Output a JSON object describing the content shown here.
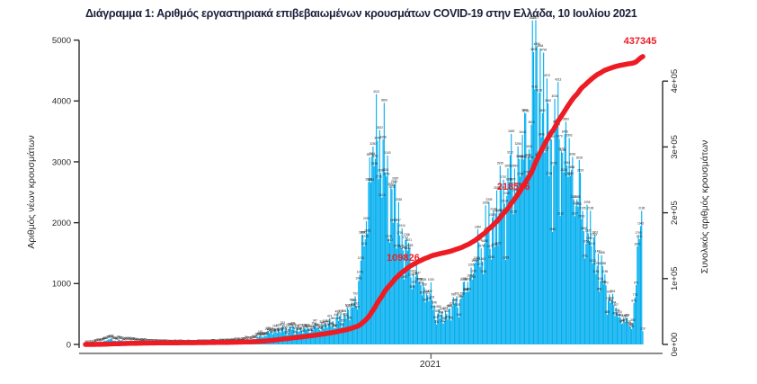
{
  "title": "Διάγραμμα 1: Αριθμός εργαστηριακά επιβεβαιωμένων κρουσμάτων COVID-19 στην Ελλάδα, 10 Ιουλίου 2021",
  "colors": {
    "bar": "#00AEEF",
    "cumulative_line": "#ED1C24",
    "annotation_text": "#ED1C24",
    "title_text": "#1b1f3a",
    "axis_text": "#2b2b2b",
    "bar_label_text": "#222222",
    "axis_line": "#2b2b2b",
    "frame_line": "#666666",
    "background": "#ffffff"
  },
  "chart_data": {
    "type": "bar",
    "title": "Διάγραμμα 1: Αριθμός εργαστηριακά επιβεβαιωμένων κρουσμάτων COVID-19 στην Ελλάδα, 10 Ιουλίου 2021",
    "x_axis": {
      "year_label": "2021",
      "year_tick_day_index": 310,
      "days": 501,
      "period": "late Feb 2020 to 10 July 2021"
    },
    "left_axis": {
      "title": "Αριθμός νέων κρουσμάτων",
      "ticks": [
        0,
        1000,
        2000,
        3000,
        4000,
        5000
      ],
      "range": [
        0,
        5000
      ]
    },
    "right_axis": {
      "title": "Συνολικός αριθμός κρουσμάτων",
      "ticks": [
        "0e+00",
        "1e+05",
        "2e+05",
        "3e+05",
        "4e+05"
      ],
      "tick_values": [
        0,
        100000,
        200000,
        300000,
        400000
      ],
      "range": [
        0,
        400000
      ]
    },
    "series": [
      {
        "name": "daily_new_cases",
        "type": "bar",
        "note": "per-day printed labels are illegible at source resolution; envelope keypoints [day_index, cases] estimated from bar heights",
        "envelope": [
          [
            0,
            2
          ],
          [
            6,
            8
          ],
          [
            13,
            35
          ],
          [
            22,
            90
          ],
          [
            26,
            71
          ],
          [
            35,
            60
          ],
          [
            48,
            40
          ],
          [
            60,
            22
          ],
          [
            75,
            15
          ],
          [
            95,
            12
          ],
          [
            110,
            18
          ],
          [
            125,
            28
          ],
          [
            140,
            45
          ],
          [
            150,
            80
          ],
          [
            160,
            160
          ],
          [
            170,
            230
          ],
          [
            182,
            260
          ],
          [
            195,
            240
          ],
          [
            207,
            280
          ],
          [
            218,
            330
          ],
          [
            228,
            420
          ],
          [
            238,
            560
          ],
          [
            244,
            860
          ],
          [
            248,
            1450
          ],
          [
            252,
            2300
          ],
          [
            256,
            2900
          ],
          [
            260,
            3350
          ],
          [
            263,
            3650
          ],
          [
            267,
            3100
          ],
          [
            272,
            2600
          ],
          [
            278,
            2250
          ],
          [
            284,
            1800
          ],
          [
            290,
            1450
          ],
          [
            296,
            1150
          ],
          [
            303,
            950
          ],
          [
            309,
            820
          ],
          [
            314,
            550
          ],
          [
            320,
            430
          ],
          [
            326,
            560
          ],
          [
            333,
            700
          ],
          [
            341,
            920
          ],
          [
            348,
            1300
          ],
          [
            355,
            1650
          ],
          [
            362,
            1900
          ],
          [
            369,
            2200
          ],
          [
            376,
            2550
          ],
          [
            383,
            2850
          ],
          [
            390,
            3100
          ],
          [
            396,
            3500
          ],
          [
            401,
            4100
          ],
          [
            405,
            4896
          ],
          [
            409,
            4100
          ],
          [
            414,
            3650
          ],
          [
            419,
            3300
          ],
          [
            424,
            3500
          ],
          [
            429,
            3350
          ],
          [
            434,
            3050
          ],
          [
            439,
            2700
          ],
          [
            444,
            2350
          ],
          [
            449,
            2000
          ],
          [
            454,
            1750
          ],
          [
            459,
            1450
          ],
          [
            465,
            1050
          ],
          [
            470,
            800
          ],
          [
            476,
            560
          ],
          [
            481,
            430
          ],
          [
            486,
            360
          ],
          [
            490,
            330
          ],
          [
            493,
            700
          ],
          [
            495,
            1400
          ],
          [
            497,
            2250
          ],
          [
            499,
            1900
          ],
          [
            500,
            219
          ]
        ],
        "pinned_values": {
          "405": 4896,
          "500": 219
        },
        "peak_daily_value": 4896
      },
      {
        "name": "cumulative_cases",
        "type": "line",
        "final_value": 437345,
        "derivation": "cumulative sum of daily bars scaled so the last point equals final_value"
      }
    ],
    "annotations": [
      {
        "text": "109826",
        "at_cumulative": 109826
      },
      {
        "text": "218566",
        "at_cumulative": 218566
      },
      {
        "text": "437345",
        "at_cumulative": 437345
      }
    ],
    "legend": "none",
    "grid": "off"
  }
}
